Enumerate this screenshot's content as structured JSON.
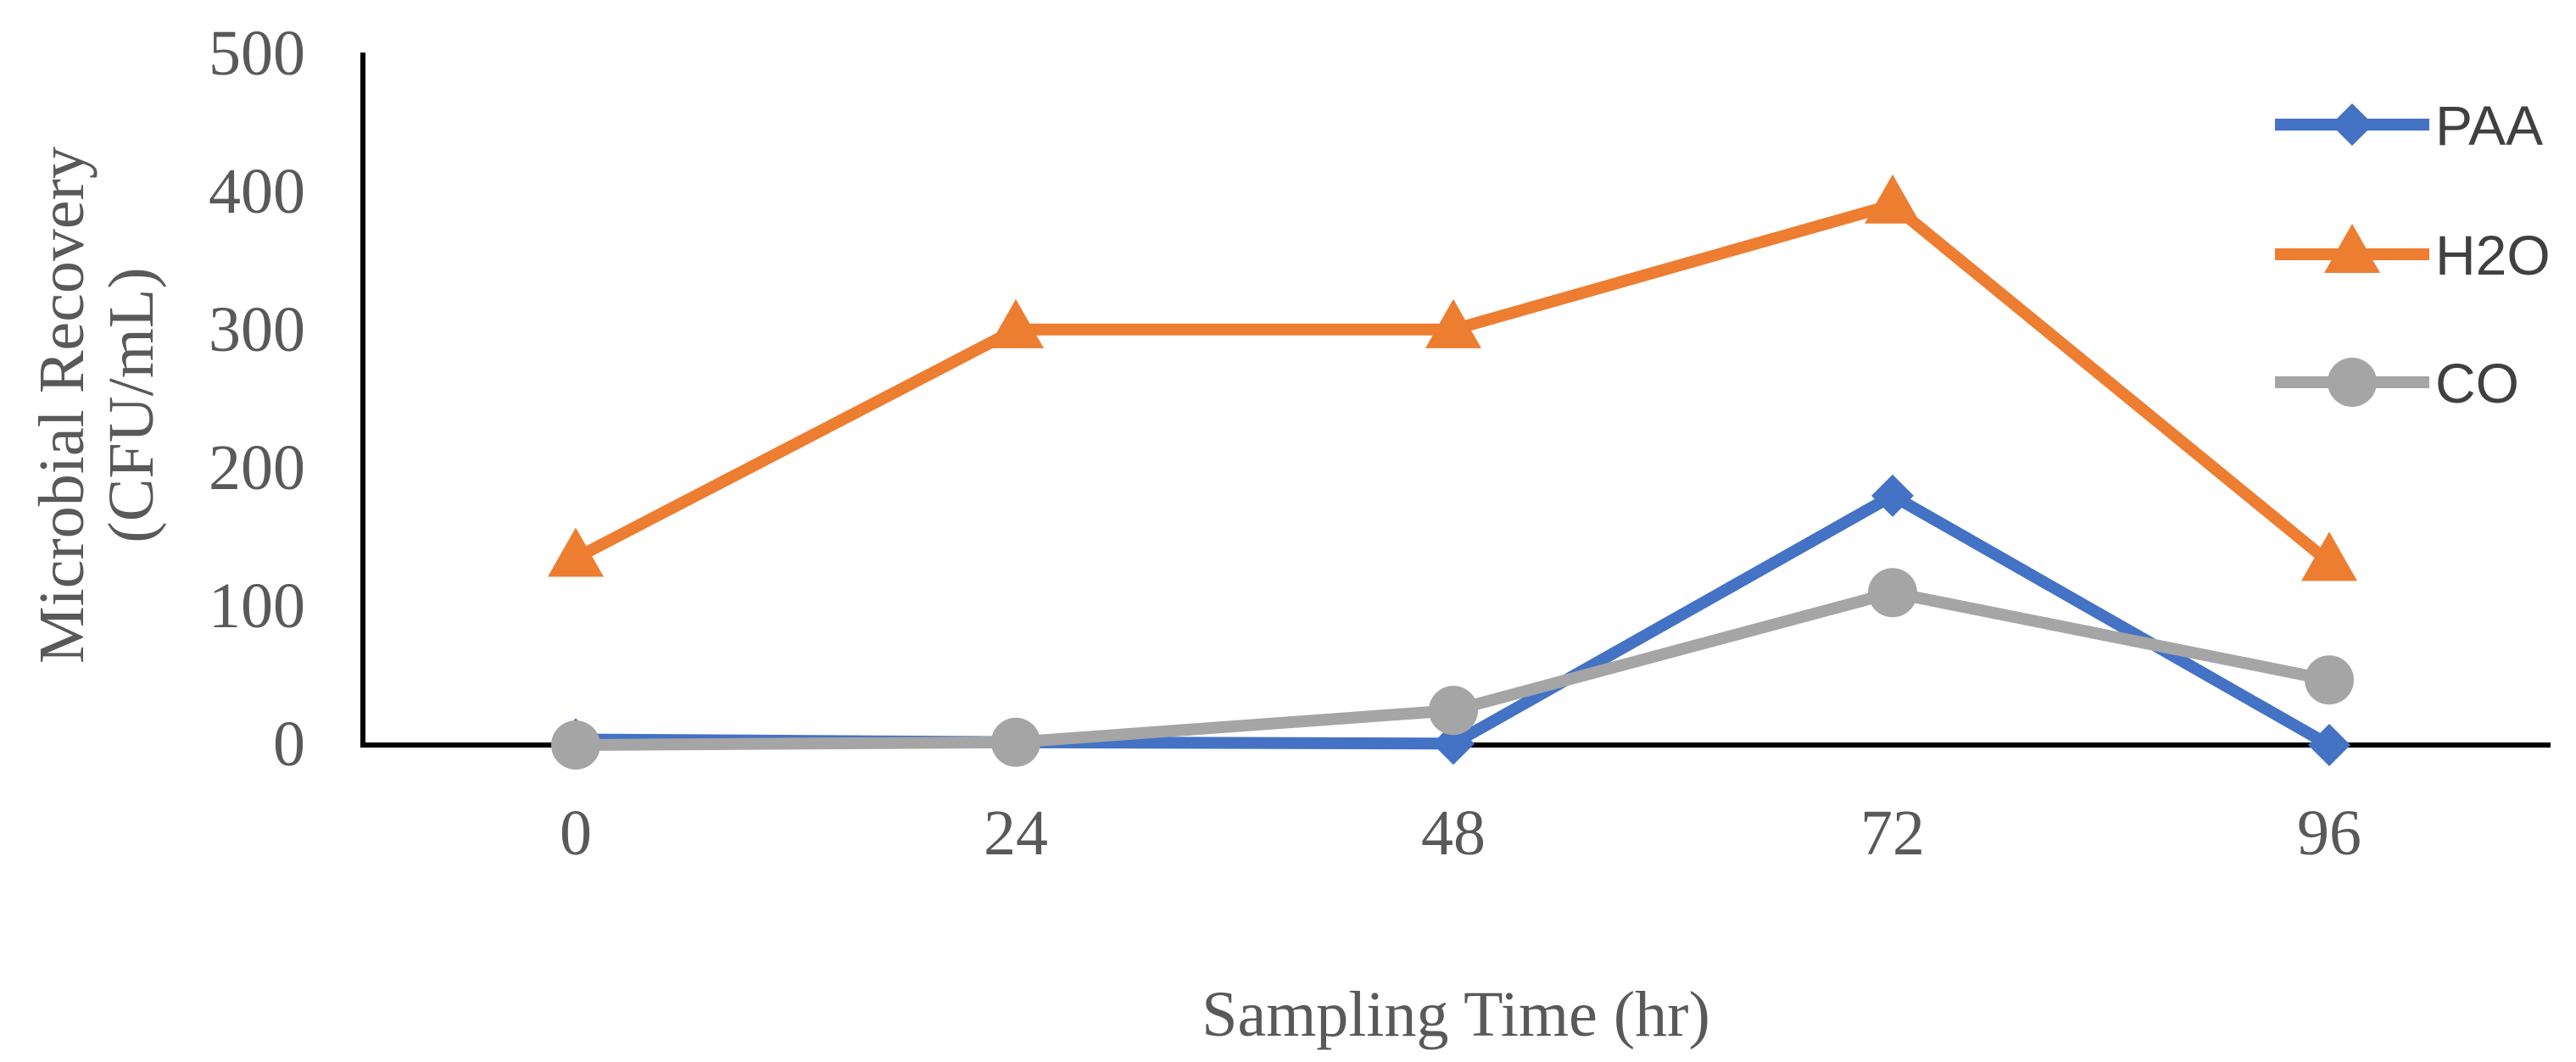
{
  "chart_data": {
    "type": "line",
    "title": "",
    "xlabel": "Sampling Time (hr)",
    "ylabel_lines": [
      "Microbial Recovery",
      "(CFU/mL)"
    ],
    "categories": [
      "0",
      "24",
      "48",
      "72",
      "96"
    ],
    "ylim": [
      0,
      500
    ],
    "yticks": [
      "0",
      "100",
      "200",
      "300",
      "400",
      "500"
    ],
    "grid": false,
    "legend_position": "top-right",
    "series": [
      {
        "name": "PAA",
        "marker": "diamond",
        "color": "#4472C4",
        "values": [
          4,
          2,
          1,
          180,
          0
        ]
      },
      {
        "name": "H2O",
        "marker": "triangle",
        "color": "#ED7D31",
        "values": [
          135,
          300,
          300,
          390,
          132
        ]
      },
      {
        "name": "CO",
        "marker": "circle",
        "color": "#A5A5A5",
        "values": [
          0,
          2,
          25,
          110,
          47
        ]
      }
    ]
  }
}
